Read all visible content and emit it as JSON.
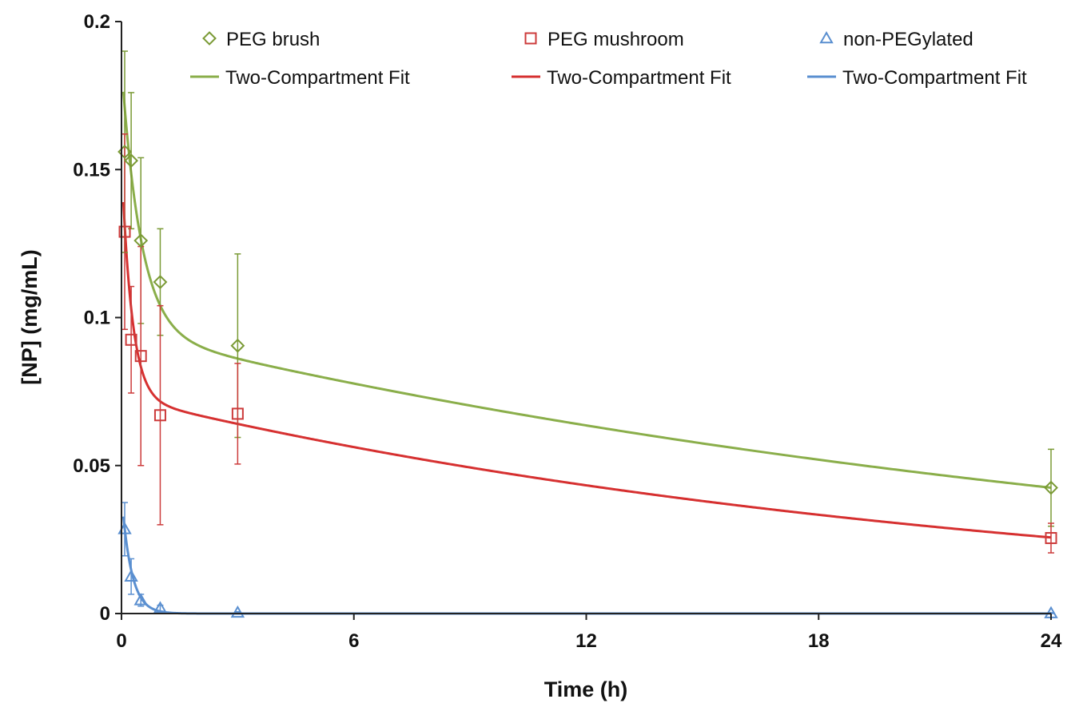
{
  "chart_data": {
    "type": "scatter",
    "xlabel": "Time (h)",
    "ylabel": "[NP] (mg/mL)",
    "xlim": [
      0,
      24
    ],
    "ylim": [
      0,
      0.2
    ],
    "x_ticks": [
      "0",
      "6",
      "12",
      "18",
      "24"
    ],
    "y_ticks": [
      "0",
      "0.05",
      "0.1",
      "0.15",
      "0.2"
    ],
    "grid": false,
    "legend_position": "top",
    "series": [
      {
        "name": "PEG brush",
        "marker": "diamond",
        "color": "#7a9a35",
        "x": [
          0.083,
          0.25,
          0.5,
          1,
          3,
          24
        ],
        "y": [
          0.156,
          0.153,
          0.126,
          0.112,
          0.0905,
          0.0425
        ],
        "err_up": [
          0.034,
          0.023,
          0.028,
          0.018,
          0.031,
          0.013
        ],
        "err_down": [
          0.034,
          0.023,
          0.028,
          0.018,
          0.031,
          0.013
        ]
      },
      {
        "name": "PEG mushroom",
        "marker": "square",
        "color": "#cc3b3b",
        "x": [
          0.083,
          0.25,
          0.5,
          1,
          3,
          24
        ],
        "y": [
          0.129,
          0.0925,
          0.087,
          0.067,
          0.0675,
          0.0255
        ],
        "err_up": [
          0.033,
          0.018,
          0.037,
          0.037,
          0.017,
          0.005
        ],
        "err_down": [
          0.033,
          0.018,
          0.037,
          0.037,
          0.017,
          0.005
        ]
      },
      {
        "name": "non-PEGylated",
        "marker": "triangle",
        "color": "#5a8fd0",
        "x": [
          0.083,
          0.25,
          0.5,
          1,
          3,
          24
        ],
        "y": [
          0.0285,
          0.0125,
          0.0045,
          0.0018,
          0.0003,
          0.0001
        ],
        "err_up": [
          0.009,
          0.006,
          0.002,
          0.001,
          0.0003,
          0.0002
        ],
        "err_down": [
          0.009,
          0.006,
          0.002,
          0.001,
          0.0003,
          0.0001
        ]
      }
    ],
    "fits": [
      {
        "name": "Two-Compartment Fit",
        "color": "#8aae4a",
        "A": 0.09,
        "alpha": 2.0,
        "B": 0.095,
        "beta": 0.0335
      },
      {
        "name": "Two-Compartment Fit",
        "color": "#d63030",
        "A": 0.08,
        "alpha": 3.8,
        "B": 0.073,
        "beta": 0.0435
      },
      {
        "name": "Two-Compartment Fit",
        "color": "#5a8fd0",
        "A": 0.04,
        "alpha": 4.0,
        "B": 0.0,
        "beta": 0.0
      }
    ]
  }
}
